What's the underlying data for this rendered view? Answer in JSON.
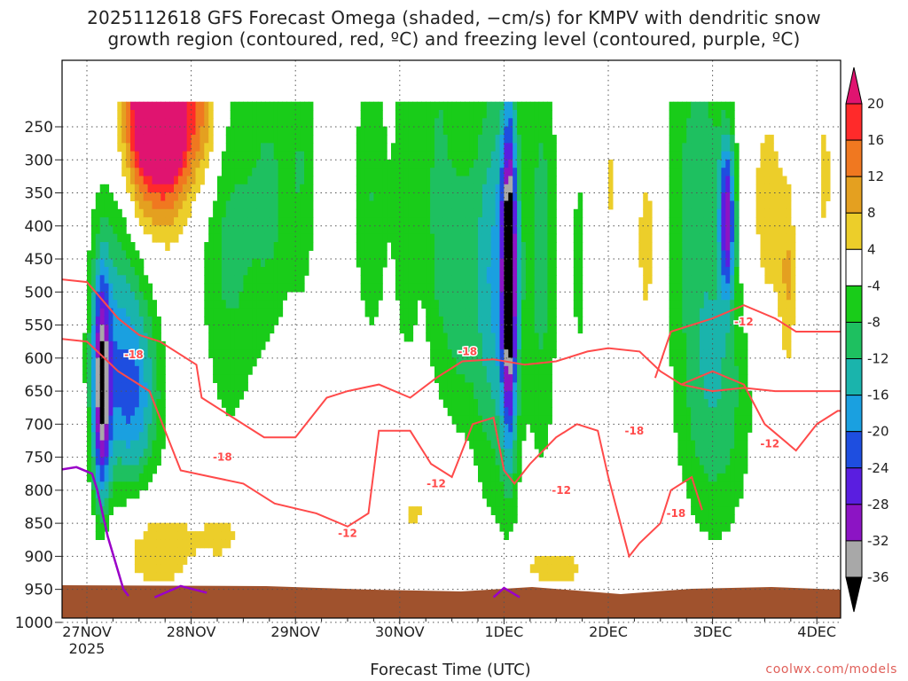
{
  "title_line1": "2025112618 GFS Forecast Omega (shaded, −cm/s) for KMPV with dendritic snow",
  "title_line2": "growth region (contoured, red, ºC) and freezing level (contoured, purple, ºC)",
  "credit": "coolwx.com/models",
  "chart_data": {
    "type": "heatmap",
    "title": "2025112618 GFS Forecast Omega (shaded, −cm/s) for KMPV with dendritic snow growth region (contoured, red, ºC) and freezing level (contoured, purple, ºC)",
    "xlabel": "Forecast Time (UTC)",
    "ylabel": "",
    "y_ticks": [
      "250",
      "300",
      "350",
      "400",
      "450",
      "500",
      "550",
      "600",
      "650",
      "700",
      "750",
      "800",
      "850",
      "900",
      "950",
      "1000"
    ],
    "x_ticks": [
      "27NOV",
      "28NOV",
      "29NOV",
      "30NOV",
      "1DEC",
      "2DEC",
      "3DEC",
      "4DEC"
    ],
    "x_year": "2025",
    "colorbar": {
      "labels": [
        "20",
        "16",
        "12",
        "8",
        "4",
        "-4",
        "-8",
        "-12",
        "-16",
        "-20",
        "-24",
        "-28",
        "-32",
        "-36"
      ],
      "colors": [
        "#ff2a2a",
        "#f07820",
        "#e4a020",
        "#ecce2a",
        "#ffffff",
        "#19cc19",
        "#1ec060",
        "#1ab4ac",
        "#1aa0e0",
        "#1e4ee0",
        "#5a1ee0",
        "#8c14c4",
        "#a8a8a8",
        "#000000"
      ],
      "top_color": "#e01470"
    },
    "omega_regions": [
      {
        "t": 0.4,
        "p": 620,
        "value": -8
      },
      {
        "t": 0.15,
        "p": 700,
        "value": -28
      },
      {
        "t": 0.7,
        "p": 260,
        "value": 20
      },
      {
        "t": 1.0,
        "p": 320,
        "value": 12
      },
      {
        "t": 1.5,
        "p": 500,
        "value": -8
      },
      {
        "t": 4.05,
        "p": 480,
        "value": -36
      },
      {
        "t": 6.1,
        "p": 370,
        "value": -28
      },
      {
        "t": 6.0,
        "p": 650,
        "value": -12
      },
      {
        "t": 0.5,
        "p": 880,
        "value": 4
      }
    ],
    "dgz_labels": [
      "-18",
      "-18",
      "-18",
      "-12",
      "-12",
      "-12",
      "-18",
      "-18",
      "-12",
      "-12"
    ],
    "ground_pressure": 960,
    "grid": true
  }
}
